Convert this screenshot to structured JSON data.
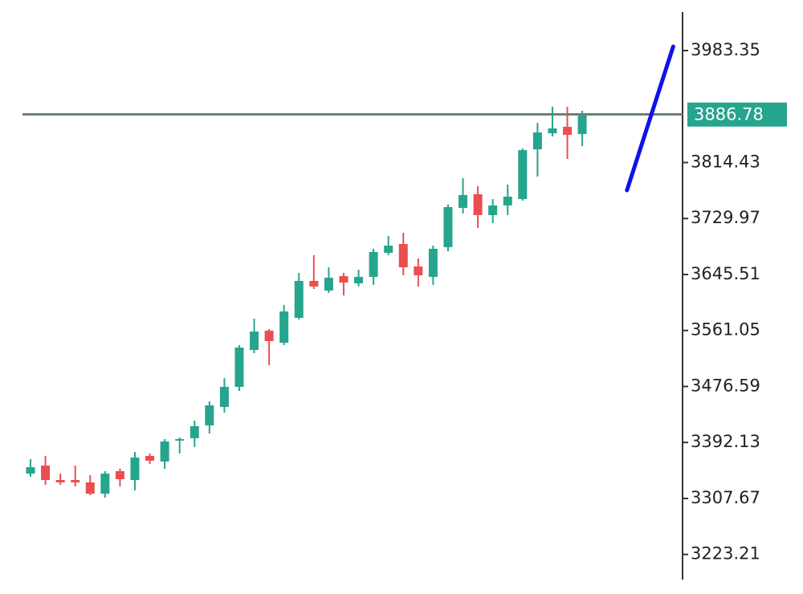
{
  "chart_data": {
    "type": "candlestick",
    "up_color": "#26a48e",
    "down_color": "#ea4e50",
    "open": [
      3345.2,
      3357.3,
      3335.5,
      3335.5,
      3331.9,
      3314.9,
      3348.8,
      3335.5,
      3371.9,
      3363.4,
      3394.9,
      3398.5,
      3417.9,
      3445.7,
      3476.0,
      3531.7,
      3560.8,
      3542.6,
      3580.1,
      3635.8,
      3621.3,
      3643.1,
      3632.2,
      3641.9,
      3678.2,
      3691.5,
      3657.6,
      3641.9,
      3686.7,
      3746.0,
      3766.6,
      3735.1,
      3749.7,
      3759.3,
      3834.4,
      3858.6,
      3868.3,
      3857.4
    ],
    "high": [
      3367.0,
      3371.9,
      3345.2,
      3357.3,
      3342.8,
      3348.8,
      3352.5,
      3377.9,
      3375.5,
      3397.3,
      3399.7,
      3425.1,
      3454.2,
      3489.3,
      3539.0,
      3578.9,
      3563.2,
      3599.5,
      3647.9,
      3674.6,
      3656.4,
      3647.9,
      3652.8,
      3684.3,
      3703.6,
      3708.5,
      3669.7,
      3689.1,
      3750.9,
      3790.8,
      3778.7,
      3759.3,
      3781.1,
      3835.6,
      3874.4,
      3898.6,
      3898.6,
      3892.5
    ],
    "low": [
      3340.4,
      3328.3,
      3328.3,
      3325.8,
      3312.5,
      3308.9,
      3325.8,
      3319.8,
      3359.7,
      3352.5,
      3375.5,
      3385.2,
      3405.8,
      3437.2,
      3469.9,
      3526.8,
      3508.7,
      3539.0,
      3577.7,
      3623.7,
      3617.7,
      3614.0,
      3627.4,
      3629.8,
      3674.6,
      3644.3,
      3627.4,
      3629.8,
      3680.6,
      3737.5,
      3715.7,
      3723.0,
      3735.1,
      3756.9,
      3793.2,
      3853.8,
      3819.9,
      3839.3
    ],
    "close": [
      3354.9,
      3335.5,
      3331.9,
      3331.9,
      3314.9,
      3345.2,
      3336.7,
      3369.4,
      3364.6,
      3393.6,
      3397.3,
      3416.7,
      3448.1,
      3476.0,
      3535.3,
      3559.5,
      3545.0,
      3589.8,
      3635.8,
      3627.4,
      3640.7,
      3633.4,
      3641.9,
      3679.4,
      3689.1,
      3656.4,
      3644.3,
      3684.3,
      3747.2,
      3765.4,
      3735.1,
      3749.7,
      3763.0,
      3833.2,
      3859.8,
      3865.9,
      3856.2,
      3886.78
    ],
    "current_price": 3886.78,
    "current_price_line_colors": [
      "#d05050",
      "#26a48e"
    ],
    "trend_line": {
      "color": "#1010e8",
      "values": [
        3772.6,
        3989.4
      ]
    },
    "ylim": [
      3188,
      4047
    ],
    "yticks": [
      3983.35,
      3814.43,
      3729.97,
      3645.51,
      3561.05,
      3476.59,
      3392.13,
      3307.67,
      3223.21
    ]
  }
}
